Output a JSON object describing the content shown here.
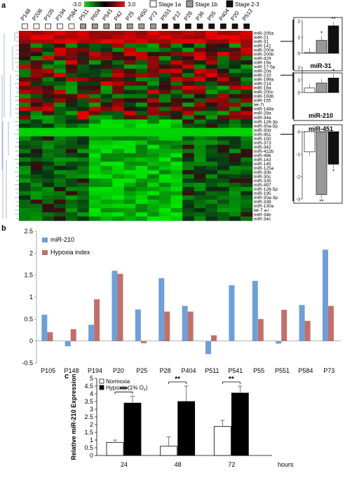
{
  "panel_a": {
    "letter": "a",
    "scale_min": "-3.0",
    "scale_max": "3.0",
    "legend": [
      {
        "label": "Stage 1a",
        "color": "#ffffff"
      },
      {
        "label": "Stage 1b",
        "color": "#999999"
      },
      {
        "label": "Stage 2-3",
        "color": "#111111"
      }
    ],
    "samples": [
      "P148",
      "P208",
      "P105",
      "P194",
      "P584",
      "P511",
      "P604",
      "P541",
      "P42",
      "P25",
      "P450",
      "P73",
      "P551",
      "P12",
      "P28",
      "P36",
      "P55",
      "P404",
      "P20",
      "P512"
    ],
    "sample_stages": [
      "1a",
      "1a",
      "1a",
      "1a",
      "1a",
      "1b",
      "1b",
      "1b",
      "1b",
      "1b",
      "1b",
      "1b",
      "2-3",
      "2-3",
      "2-3",
      "2-3",
      "2-3",
      "2-3",
      "2-3",
      "2-3"
    ],
    "genes": [
      "miR-205a",
      "miR-21",
      "miR-31",
      "miR-141",
      "miR-200a",
      "miR-200b",
      "miR-429",
      "miR-19a",
      "miR-17-5p",
      "miR-20a",
      "miR-210",
      "miR-199a",
      "miR-214",
      "miR-18a",
      "miR-200c",
      "miR-193b",
      "miR-155",
      "let-7i",
      "miR-148a",
      "miR-29a",
      "miR-34a",
      "miR-126-3p",
      "miR-30a-5p",
      "miR-30d",
      "miR-451",
      "miR-150",
      "miR-373",
      "miR-342",
      "miR-422b",
      "miR-486",
      "miR-143",
      "miR-145",
      "miR-125a",
      "miR-30b",
      "miR-30c",
      "miR-335",
      "miR-497",
      "miR-126-5p",
      "miR-195",
      "miR-30a-3p",
      "miR-338",
      "miR-130a",
      "let-7 a-i",
      "miR-34b",
      "miR-34c"
    ],
    "insets": [
      {
        "title": "miR-31",
        "yticks": [
          "0",
          "1",
          "2"
        ],
        "values": [
          0.05,
          0.8,
          1.7
        ],
        "stars": [
          "",
          "*",
          "**"
        ]
      },
      {
        "title": "miR-210",
        "yticks": [
          "0",
          "1",
          "2"
        ],
        "values": [
          0.35,
          0.75,
          1.15
        ],
        "stars": [
          "",
          "",
          "*"
        ]
      },
      {
        "title": "miR-451",
        "yticks": [
          "0",
          "-1",
          "-2",
          "-3"
        ],
        "values": [
          -0.9,
          -2.8,
          -1.45
        ],
        "stars": [
          "",
          "**",
          "*"
        ]
      }
    ]
  },
  "chart_data": [
    {
      "type": "bar",
      "panel": "b",
      "categories": [
        "P105",
        "P148",
        "P194",
        "P20",
        "P25",
        "P28",
        "P404",
        "P511",
        "P541",
        "P55",
        "P551",
        "P584",
        "P73"
      ],
      "series": [
        {
          "name": "miR-210",
          "color": "#6f9fd8",
          "values": [
            0.6,
            -0.12,
            0.37,
            1.6,
            0.72,
            1.43,
            0.8,
            -0.3,
            1.27,
            1.37,
            -0.06,
            0.82,
            2.08
          ]
        },
        {
          "name": "Hypoxia index",
          "color": "#c0706a",
          "values": [
            0.2,
            0.27,
            0.95,
            1.53,
            -0.05,
            0.67,
            0.67,
            0.13,
            0.0,
            0.5,
            0.71,
            0.46,
            0.8
          ]
        }
      ],
      "ylim": [
        -0.5,
        2.5
      ],
      "yticks": [
        "-0.5",
        "0",
        "0.5",
        "1",
        "1.5",
        "2",
        "2.5"
      ],
      "legend_position": "top-left"
    },
    {
      "type": "bar",
      "panel": "c",
      "categories": [
        "24",
        "48",
        "72"
      ],
      "series": [
        {
          "name": "Normoxia",
          "color": "#ffffff",
          "values": [
            0.85,
            0.6,
            1.88
          ],
          "errors": [
            0.15,
            0.6,
            0.4
          ]
        },
        {
          "name": "Hypoxia (1% O2)",
          "color": "#000000",
          "values": [
            3.4,
            3.5,
            4.05
          ],
          "errors": [
            0.45,
            1.0,
            0.45
          ]
        }
      ],
      "ylim": [
        0,
        5
      ],
      "yticks": [
        "0",
        "0.5",
        "1",
        "1.5",
        "2",
        "2.5",
        "3",
        "3.5",
        "4",
        "4.5",
        "5"
      ],
      "ylabel": "Relative miR-210 Expression",
      "xlabel": "hours",
      "significance": [
        "***",
        "**",
        "**"
      ],
      "legend_position": "top-left"
    }
  ],
  "panel_b": {
    "letter": "b"
  },
  "panel_c": {
    "letter": "c",
    "legend_normoxia": "Normoxia",
    "legend_hypoxia_prefix": "Hypoxia (1% O",
    "legend_hypoxia_sub": "2",
    "legend_hypoxia_suffix": ")"
  }
}
